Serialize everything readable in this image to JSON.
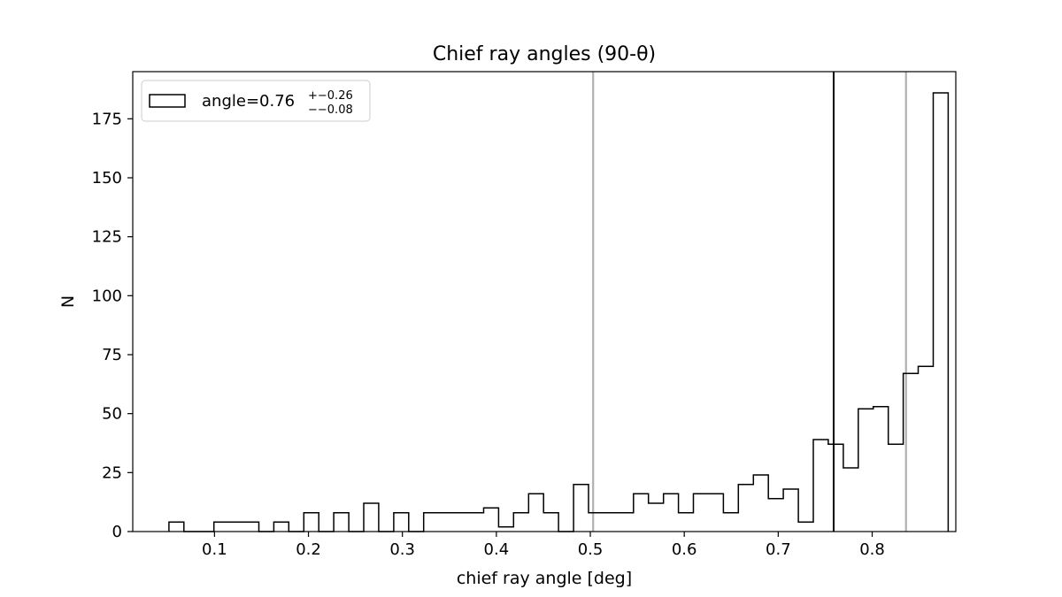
{
  "chart_data": {
    "type": "histogram",
    "title": "Chief ray angles (90-θ)",
    "xlabel": "chief ray angle [deg]",
    "ylabel": "N",
    "xlim": [
      0.013,
      0.889
    ],
    "ylim": [
      0,
      195
    ],
    "xticks": [
      0.1,
      0.2,
      0.3,
      0.4,
      0.5,
      0.6,
      0.7,
      0.8
    ],
    "xtick_labels": [
      "0.1",
      "0.2",
      "0.3",
      "0.4",
      "0.5",
      "0.6",
      "0.7",
      "0.8"
    ],
    "yticks": [
      0,
      25,
      50,
      75,
      100,
      125,
      150,
      175
    ],
    "ytick_labels": [
      "0",
      "25",
      "50",
      "75",
      "100",
      "125",
      "150",
      "175"
    ],
    "bin_start": 0.0515,
    "bin_width": 0.01595,
    "counts": [
      4,
      0,
      0,
      4,
      4,
      4,
      0,
      4,
      0,
      8,
      0,
      8,
      0,
      12,
      0,
      8,
      0,
      8,
      8,
      8,
      8,
      10,
      2,
      8,
      16,
      8,
      0,
      20,
      8,
      8,
      8,
      16,
      12,
      16,
      8,
      16,
      16,
      8,
      20,
      24,
      14,
      18,
      4,
      39,
      37,
      27,
      52,
      53,
      37,
      67,
      70,
      186
    ],
    "vlines": [
      {
        "x": 0.503,
        "color": "#b0b0b0"
      },
      {
        "x": 0.759,
        "color": "#000000"
      },
      {
        "x": 0.836,
        "color": "#b0b0b0"
      }
    ],
    "legend": {
      "placement": "top-left",
      "label_main": "angle=0.76",
      "label_sup": "+−0.26",
      "label_sub": "−−0.08"
    }
  }
}
